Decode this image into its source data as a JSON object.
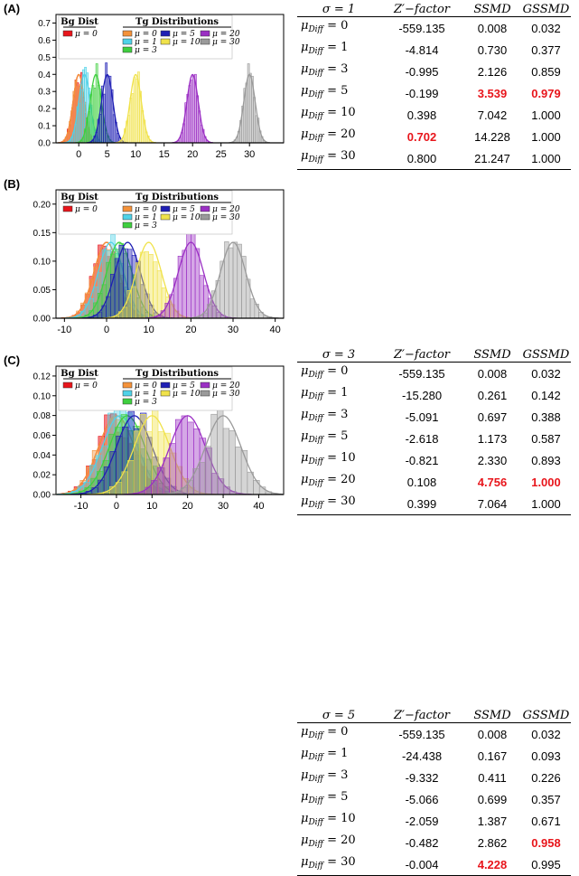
{
  "legend": {
    "bg_title": "Bg Dist",
    "tg_title": "Tg Distributions",
    "bg_label": "μ = 0",
    "tg_labels": [
      "μ = 0",
      "μ = 1",
      "μ = 3",
      "μ = 5",
      "μ = 10",
      "μ = 20",
      "μ = 30"
    ]
  },
  "panels": [
    {
      "label": "(A)",
      "sigma": 1,
      "sigma_label": "σ = 1",
      "columns": [
        "Z′−factor",
        "SSMD",
        "GSSMD"
      ],
      "rows": [
        {
          "diff": "0",
          "z": "-559.135",
          "ssmd": "0.008",
          "gssmd": "0.032",
          "hl": []
        },
        {
          "diff": "1",
          "z": "-4.814",
          "ssmd": "0.730",
          "gssmd": "0.377",
          "hl": []
        },
        {
          "diff": "3",
          "z": "-0.995",
          "ssmd": "2.126",
          "gssmd": "0.859",
          "hl": []
        },
        {
          "diff": "5",
          "z": "-0.199",
          "ssmd": "3.539",
          "gssmd": "0.979",
          "hl": [
            "ssmd",
            "gssmd"
          ]
        },
        {
          "diff": "10",
          "z": "0.398",
          "ssmd": "7.042",
          "gssmd": "1.000",
          "hl": []
        },
        {
          "diff": "20",
          "z": "0.702",
          "ssmd": "14.228",
          "gssmd": "1.000",
          "hl": [
            "z"
          ]
        },
        {
          "diff": "30",
          "z": "0.800",
          "ssmd": "21.247",
          "gssmd": "1.000",
          "hl": []
        }
      ]
    },
    {
      "label": "(B)",
      "sigma": 3,
      "sigma_label": "σ = 3",
      "columns": [
        "Z′−factor",
        "SSMD",
        "GSSMD"
      ],
      "rows": [
        {
          "diff": "0",
          "z": "-559.135",
          "ssmd": "0.008",
          "gssmd": "0.032",
          "hl": []
        },
        {
          "diff": "1",
          "z": "-15.280",
          "ssmd": "0.261",
          "gssmd": "0.142",
          "hl": []
        },
        {
          "diff": "3",
          "z": "-5.091",
          "ssmd": "0.697",
          "gssmd": "0.388",
          "hl": []
        },
        {
          "diff": "5",
          "z": "-2.618",
          "ssmd": "1.173",
          "gssmd": "0.587",
          "hl": []
        },
        {
          "diff": "10",
          "z": "-0.821",
          "ssmd": "2.330",
          "gssmd": "0.893",
          "hl": []
        },
        {
          "diff": "20",
          "z": "0.108",
          "ssmd": "4.756",
          "gssmd": "1.000",
          "hl": [
            "ssmd",
            "gssmd"
          ]
        },
        {
          "diff": "30",
          "z": "0.399",
          "ssmd": "7.064",
          "gssmd": "1.000",
          "hl": []
        }
      ]
    },
    {
      "label": "(C)",
      "sigma": 5,
      "sigma_label": "σ = 5",
      "columns": [
        "Z′−factor",
        "SSMD",
        "GSSMD"
      ],
      "rows": [
        {
          "diff": "0",
          "z": "-559.135",
          "ssmd": "0.008",
          "gssmd": "0.032",
          "hl": []
        },
        {
          "diff": "1",
          "z": "-24.438",
          "ssmd": "0.167",
          "gssmd": "0.093",
          "hl": []
        },
        {
          "diff": "3",
          "z": "-9.332",
          "ssmd": "0.411",
          "gssmd": "0.226",
          "hl": []
        },
        {
          "diff": "5",
          "z": "-5.066",
          "ssmd": "0.699",
          "gssmd": "0.357",
          "hl": []
        },
        {
          "diff": "10",
          "z": "-2.059",
          "ssmd": "1.387",
          "gssmd": "0.671",
          "hl": []
        },
        {
          "diff": "20",
          "z": "-0.482",
          "ssmd": "2.862",
          "gssmd": "0.958",
          "hl": [
            "gssmd"
          ]
        },
        {
          "diff": "30",
          "z": "-0.004",
          "ssmd": "4.228",
          "gssmd": "0.995",
          "hl": [
            "ssmd"
          ]
        }
      ]
    }
  ],
  "colors": {
    "bg": "#e8151b",
    "tg": [
      "#f4923a",
      "#4fd2e8",
      "#3fcf3f",
      "#1f1fb4",
      "#f0e24a",
      "#9b2fc4",
      "#9a9a9a"
    ],
    "highlight": "#e8151b"
  },
  "chart_data": [
    {
      "type": "histogram",
      "title": "(A)",
      "sigma": 1,
      "means": [
        0,
        0,
        1,
        3,
        5,
        10,
        20,
        30
      ],
      "series_names": [
        "Bg μ = 0",
        "Tg μ = 0",
        "Tg μ = 1",
        "Tg μ = 3",
        "Tg μ = 5",
        "Tg μ = 10",
        "Tg μ = 20",
        "Tg μ = 30"
      ],
      "xlim": [
        -4,
        36
      ],
      "ylim": [
        0,
        0.75
      ],
      "xticks": [
        0,
        5,
        10,
        15,
        20,
        25,
        30
      ],
      "yticks": [
        0.0,
        0.1,
        0.2,
        0.3,
        0.4,
        0.5,
        0.6,
        0.7
      ],
      "ytick_labels": [
        "0.0",
        "0.1",
        "0.2",
        "0.3",
        "0.4",
        "0.5",
        "0.6",
        "0.7"
      ]
    },
    {
      "type": "histogram",
      "title": "(B)",
      "sigma": 3,
      "means": [
        0,
        0,
        1,
        3,
        5,
        10,
        20,
        30
      ],
      "series_names": [
        "Bg μ = 0",
        "Tg μ = 0",
        "Tg μ = 1",
        "Tg μ = 3",
        "Tg μ = 5",
        "Tg μ = 10",
        "Tg μ = 20",
        "Tg μ = 30"
      ],
      "xlim": [
        -12,
        42
      ],
      "ylim": [
        0,
        0.225
      ],
      "xticks": [
        -10,
        0,
        10,
        20,
        30,
        40
      ],
      "yticks": [
        0.0,
        0.05,
        0.1,
        0.15,
        0.2
      ],
      "ytick_labels": [
        "0.00",
        "0.05",
        "0.10",
        "0.15",
        "0.20"
      ]
    },
    {
      "type": "histogram",
      "title": "(C)",
      "sigma": 5,
      "means": [
        0,
        0,
        1,
        3,
        5,
        10,
        20,
        30
      ],
      "series_names": [
        "Bg μ = 0",
        "Tg μ = 0",
        "Tg μ = 1",
        "Tg μ = 3",
        "Tg μ = 5",
        "Tg μ = 10",
        "Tg μ = 20",
        "Tg μ = 30"
      ],
      "xlim": [
        -17,
        47
      ],
      "ylim": [
        0,
        0.13
      ],
      "xticks": [
        -10,
        0,
        10,
        20,
        30,
        40
      ],
      "yticks": [
        0.0,
        0.02,
        0.04,
        0.06,
        0.08,
        0.1,
        0.12
      ],
      "ytick_labels": [
        "0.00",
        "0.02",
        "0.04",
        "0.06",
        "0.08",
        "0.10",
        "0.12"
      ]
    }
  ]
}
